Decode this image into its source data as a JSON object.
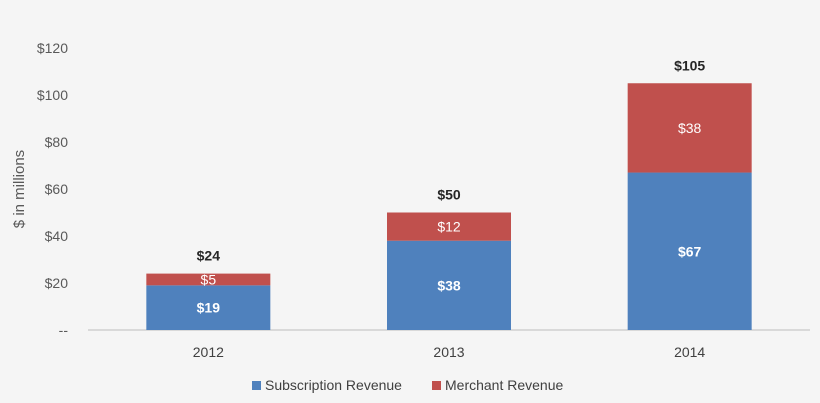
{
  "chart_data": {
    "type": "bar",
    "stacked": true,
    "title": "",
    "xlabel": "",
    "ylabel": "$ in millions",
    "ylim": [
      0,
      120
    ],
    "yticks": [
      0,
      20,
      40,
      60,
      80,
      100,
      120
    ],
    "ytick_labels": [
      "--",
      "$20",
      "$40",
      "$60",
      "$80",
      "$100",
      "$120"
    ],
    "categories": [
      "2012",
      "2013",
      "2014"
    ],
    "series": [
      {
        "name": "Subscription Revenue",
        "color": "#4f81bd",
        "values": [
          19,
          38,
          67
        ],
        "labels": [
          "$19",
          "$38",
          "$67"
        ]
      },
      {
        "name": "Merchant Revenue",
        "color": "#c0504d",
        "values": [
          5,
          12,
          38
        ],
        "labels": [
          "$5",
          "$12",
          "$38"
        ]
      }
    ],
    "totals": [
      24,
      50,
      105
    ],
    "total_labels": [
      "$24",
      "$50",
      "$105"
    ],
    "grid": false,
    "legend": "bottom"
  }
}
